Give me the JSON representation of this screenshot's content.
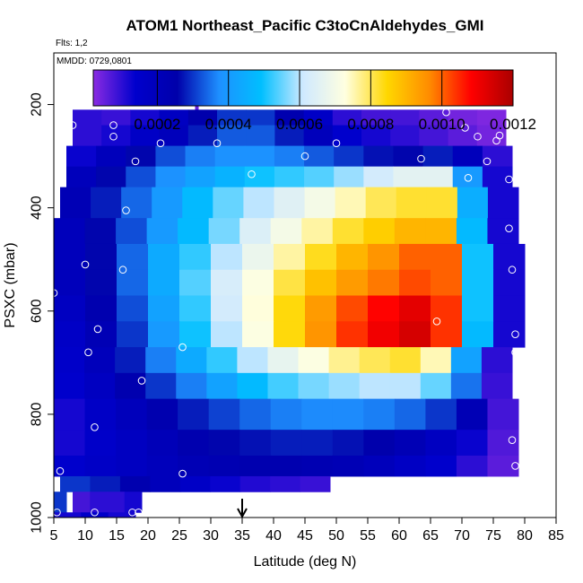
{
  "chart_data": {
    "type": "heatmap",
    "title": "ATOM1 Northeast_Pacific C3toCnAldehydes_GMI",
    "subtitle_flights": "Flts: 1,2",
    "subtitle_dates": "MMDD: 0729,0801",
    "xlabel": "Latitude (deg N)",
    "ylabel": "PSXC (mbar)",
    "xlim": [
      5,
      85
    ],
    "ylim": [
      1000,
      100
    ],
    "x_ticks": [
      5,
      10,
      15,
      20,
      25,
      30,
      35,
      40,
      45,
      50,
      55,
      60,
      65,
      70,
      75,
      80,
      85
    ],
    "y_ticks": [
      200,
      400,
      600,
      800,
      1000
    ],
    "colorbar": {
      "range": [
        2e-05,
        0.0012
      ],
      "ticks": [
        0.0002,
        0.0004,
        0.0006,
        0.0008,
        0.001,
        0.0012
      ],
      "tick_labels": [
        "0.0002",
        "0.0004",
        "0.0006",
        "0.0008",
        "0.0010",
        "0.0012"
      ],
      "colors": [
        "#8a2be2",
        "#0000cd",
        "#0000aa",
        "#1e90ff",
        "#00bfff",
        "#cfe9ff",
        "#ffffe0",
        "#ffd700",
        "#ff8c00",
        "#ff0000",
        "#aa0000"
      ]
    },
    "marker_latitude": 35,
    "rows": [
      {
        "p": [
          180,
          210
        ],
        "x": [
          27.5,
          28
        ],
        "v": [
          5e-05
        ]
      },
      {
        "p": [
          210,
          240
        ],
        "x": [
          8,
          77
        ],
        "v": [
          0.0001,
          9e-05,
          0.00012,
          0.00018,
          0.00025,
          0.0003,
          0.0003,
          0.00024,
          0.00016,
          0.0001,
          8e-05,
          8e-05,
          6e-05,
          4e-05,
          3e-05
        ]
      },
      {
        "p": [
          240,
          280
        ],
        "x": [
          8,
          77
        ],
        "v": [
          0.0001,
          0.00012,
          0.00016,
          0.0002,
          0.00028,
          0.00033,
          0.00033,
          0.00028,
          0.0002,
          0.00014,
          0.00012,
          0.0001,
          8e-05,
          6e-05,
          4e-05
        ]
      },
      {
        "p": [
          280,
          320
        ],
        "x": [
          7,
          78
        ],
        "v": [
          0.00013,
          0.0002,
          0.00026,
          0.00032,
          0.00036,
          0.00038,
          0.00038,
          0.00036,
          0.00033,
          0.0003,
          0.00027,
          0.00026,
          0.00028,
          0.0002,
          0.0001
        ]
      },
      {
        "p": [
          320,
          360
        ],
        "x": [
          7,
          78
        ],
        "v": [
          0.0002,
          0.00026,
          0.00032,
          0.00038,
          0.00042,
          0.00046,
          0.0005,
          0.00052,
          0.00054,
          0.00058,
          0.00062,
          0.00066,
          0.00066,
          0.0004,
          0.00012
        ]
      },
      {
        "p": [
          360,
          420
        ],
        "x": [
          6,
          79
        ],
        "v": [
          0.00022,
          0.00028,
          0.00034,
          0.0004,
          0.00048,
          0.00055,
          0.0006,
          0.00065,
          0.0007,
          0.00075,
          0.0008,
          0.00082,
          0.00082,
          0.00045,
          0.00012
        ]
      },
      {
        "p": [
          420,
          470
        ],
        "x": [
          5,
          79
        ],
        "v": [
          0.0002,
          0.00026,
          0.00032,
          0.0004,
          0.00048,
          0.00056,
          0.00064,
          0.0007,
          0.00076,
          0.00082,
          0.00086,
          0.0009,
          0.0009,
          0.00048,
          0.00012
        ]
      },
      {
        "p": [
          470,
          520
        ],
        "x": [
          5,
          80
        ],
        "v": [
          0.0002,
          0.00026,
          0.00034,
          0.00044,
          0.00052,
          0.0006,
          0.00068,
          0.00076,
          0.00083,
          0.0009,
          0.00095,
          0.001,
          0.001,
          0.0005,
          0.00012
        ]
      },
      {
        "p": [
          520,
          570
        ],
        "x": [
          5,
          80
        ],
        "v": [
          0.0002,
          0.00026,
          0.00034,
          0.00044,
          0.00054,
          0.00063,
          0.00072,
          0.00081,
          0.00088,
          0.00094,
          0.00098,
          0.00102,
          0.001,
          0.0005,
          0.00012
        ]
      },
      {
        "p": [
          570,
          620
        ],
        "x": [
          5,
          80
        ],
        "v": [
          0.00018,
          0.00024,
          0.00032,
          0.00042,
          0.00052,
          0.00062,
          0.00073,
          0.00084,
          0.00094,
          0.00102,
          0.00108,
          0.00112,
          0.00104,
          0.0005,
          0.00012
        ]
      },
      {
        "p": [
          620,
          670
        ],
        "x": [
          5,
          80
        ],
        "v": [
          0.00016,
          0.00022,
          0.0003,
          0.0004,
          0.0005,
          0.0006,
          0.00072,
          0.00084,
          0.00095,
          0.00104,
          0.0011,
          0.00114,
          0.00104,
          0.00048,
          0.00012
        ]
      },
      {
        "p": [
          670,
          720
        ],
        "x": [
          5,
          78
        ],
        "v": [
          0.00015,
          0.0002,
          0.00028,
          0.00036,
          0.00044,
          0.00052,
          0.0006,
          0.00067,
          0.00072,
          0.00077,
          0.0008,
          0.00082,
          0.00075,
          0.00042,
          0.0001
        ]
      },
      {
        "p": [
          720,
          770
        ],
        "x": [
          5,
          78
        ],
        "v": [
          0.00014,
          0.00018,
          0.00024,
          0.0003,
          0.00036,
          0.00042,
          0.00048,
          0.00053,
          0.00056,
          0.00058,
          0.0006,
          0.0006,
          0.00055,
          0.00035,
          9e-05
        ]
      },
      {
        "p": [
          770,
          830
        ],
        "x": [
          5,
          79
        ],
        "v": [
          0.00012,
          0.00016,
          0.0002,
          0.00024,
          0.00028,
          0.00031,
          0.00034,
          0.00036,
          0.00037,
          0.00037,
          0.00036,
          0.00034,
          0.0003,
          0.00022,
          8e-05
        ]
      },
      {
        "p": [
          830,
          880
        ],
        "x": [
          5,
          79
        ],
        "v": [
          0.00012,
          0.00015,
          0.00018,
          0.00021,
          0.00024,
          0.00026,
          0.00027,
          0.00028,
          0.00028,
          0.00027,
          0.00025,
          0.00022,
          0.00018,
          0.00013,
          7e-05
        ]
      },
      {
        "p": [
          880,
          920
        ],
        "x": [
          5,
          79
        ],
        "v": [
          0.00014,
          0.00016,
          0.00018,
          0.0002,
          0.00022,
          0.00023,
          0.00024,
          0.00024,
          0.00023,
          0.00022,
          0.0002,
          0.00017,
          0.00014,
          0.0001,
          6e-05
        ]
      },
      {
        "p": [
          920,
          950
        ],
        "x": [
          6,
          49
        ],
        "v": [
          0.0003,
          0.00028,
          0.00024,
          0.0002,
          0.00016,
          0.00013,
          0.00011,
          0.0001,
          9e-05
        ]
      },
      {
        "p": [
          950,
          990
        ],
        "x": [
          5,
          7
        ],
        "v": [
          0.0003
        ]
      },
      {
        "p": [
          950,
          990
        ],
        "x": [
          8,
          19
        ],
        "v": [
          8e-05,
          0.0001,
          0.0001,
          0.00012
        ]
      },
      {
        "p": [
          990,
          1000
        ],
        "x": [
          5,
          18
        ],
        "v": [
          0.00012,
          0.00015,
          0.00012
        ]
      }
    ],
    "points": [
      [
        27.5,
        195
      ],
      [
        8,
        240
      ],
      [
        14.5,
        240
      ],
      [
        14.5,
        262
      ],
      [
        22,
        275
      ],
      [
        31,
        275
      ],
      [
        45,
        300
      ],
      [
        50,
        275
      ],
      [
        18,
        310
      ],
      [
        36.5,
        335
      ],
      [
        63.5,
        305
      ],
      [
        67.5,
        215
      ],
      [
        70.5,
        245
      ],
      [
        72.5,
        262
      ],
      [
        74,
        310
      ],
      [
        75.5,
        270
      ],
      [
        76,
        260
      ],
      [
        71,
        342
      ],
      [
        77.5,
        345
      ],
      [
        16.5,
        405
      ],
      [
        77.5,
        440
      ],
      [
        10,
        510
      ],
      [
        16,
        520
      ],
      [
        78,
        520
      ],
      [
        5,
        565
      ],
      [
        12,
        635
      ],
      [
        66,
        620
      ],
      [
        78.5,
        645
      ],
      [
        10.5,
        680
      ],
      [
        25.5,
        670
      ],
      [
        78.5,
        680
      ],
      [
        19,
        735
      ],
      [
        11.5,
        825
      ],
      [
        78,
        850
      ],
      [
        78.5,
        900
      ],
      [
        6,
        910
      ],
      [
        25.5,
        915
      ],
      [
        5.5,
        990
      ],
      [
        11.5,
        990
      ],
      [
        17.5,
        990
      ],
      [
        18.5,
        990
      ]
    ]
  }
}
